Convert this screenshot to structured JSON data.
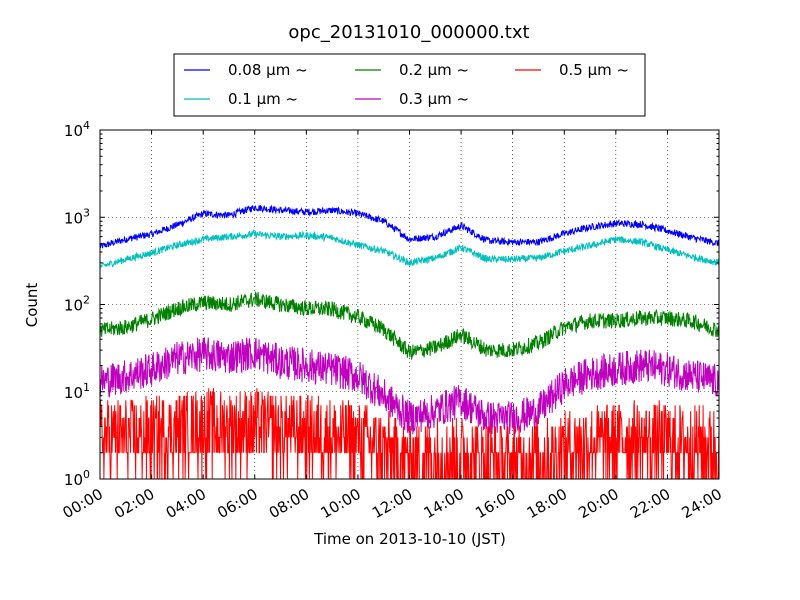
{
  "chart_data": {
    "type": "line",
    "title": "opc_20131010_000000.txt",
    "xlabel": "Time on 2013-10-10 (JST)",
    "ylabel": "Count",
    "yscale": "log",
    "ylim": [
      1,
      10000
    ],
    "xlim": [
      "00:00",
      "24:00"
    ],
    "grid": true,
    "legend_position": "top",
    "x_tick_labels": [
      "00:00",
      "02:00",
      "04:00",
      "06:00",
      "08:00",
      "10:00",
      "12:00",
      "14:00",
      "16:00",
      "18:00",
      "20:00",
      "22:00",
      "24:00"
    ],
    "y_ticks": [
      {
        "value": 1,
        "base": "10",
        "exp": "0"
      },
      {
        "value": 10,
        "base": "10",
        "exp": "1"
      },
      {
        "value": 100,
        "base": "10",
        "exp": "2"
      },
      {
        "value": 1000,
        "base": "10",
        "exp": "3"
      },
      {
        "value": 10000,
        "base": "10",
        "exp": "4"
      }
    ],
    "x_hours": [
      0,
      1,
      2,
      3,
      4,
      5,
      6,
      7,
      8,
      9,
      10,
      11,
      12,
      13,
      14,
      15,
      16,
      17,
      18,
      19,
      20,
      21,
      22,
      23,
      24
    ],
    "series": [
      {
        "name": "0.08 μm ~",
        "color": "#0000ff",
        "noise": 0.04,
        "values": [
          460,
          560,
          640,
          820,
          1100,
          1050,
          1300,
          1200,
          1150,
          1200,
          1100,
          900,
          560,
          600,
          800,
          540,
          520,
          520,
          650,
          770,
          850,
          830,
          700,
          580,
          500
        ]
      },
      {
        "name": "0.1 μm ~",
        "color": "#00bfbf",
        "noise": 0.04,
        "values": [
          270,
          330,
          390,
          480,
          560,
          600,
          640,
          600,
          620,
          580,
          480,
          410,
          300,
          340,
          450,
          330,
          330,
          340,
          410,
          470,
          560,
          520,
          420,
          350,
          300
        ]
      },
      {
        "name": "0.2 μm ~",
        "color": "#008000",
        "noise": 0.09,
        "values": [
          50,
          55,
          68,
          90,
          105,
          100,
          115,
          100,
          90,
          88,
          72,
          52,
          28,
          32,
          45,
          30,
          30,
          36,
          55,
          65,
          65,
          70,
          70,
          64,
          50
        ]
      },
      {
        "name": "0.3 μm ~",
        "color": "#bf00bf",
        "noise": 0.2,
        "values": [
          13,
          15,
          18,
          24,
          27,
          25,
          28,
          22,
          20,
          18,
          15,
          9,
          5,
          6,
          8,
          5,
          5,
          6,
          12,
          16,
          18,
          20,
          18,
          15,
          13
        ]
      },
      {
        "name": "0.5 μm ~",
        "color": "#ff0000",
        "noise": 0.45,
        "values": [
          3,
          3,
          3.2,
          3.5,
          4,
          3.8,
          4,
          3.5,
          3.4,
          3.2,
          2.8,
          2.2,
          1.6,
          1.8,
          2,
          1.6,
          1.6,
          1.7,
          2.2,
          2.6,
          2.8,
          2.8,
          2.7,
          2.5,
          2.4
        ]
      }
    ]
  }
}
